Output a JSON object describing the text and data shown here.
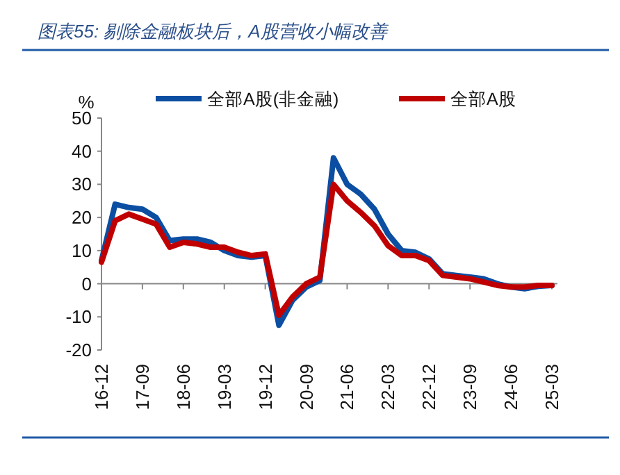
{
  "chart_data": {
    "type": "line",
    "title": "图表55: 剔除金融板块后，A股营收小幅改善",
    "ylabel": "%",
    "categories": [
      "16-12",
      null,
      null,
      "17-09",
      null,
      null,
      "18-06",
      null,
      null,
      "19-03",
      null,
      null,
      "19-12",
      null,
      null,
      "20-09",
      null,
      null,
      "21-06",
      null,
      null,
      "22-03",
      null,
      null,
      "22-12",
      null,
      null,
      "23-09",
      null,
      null,
      "24-06",
      null,
      null,
      "25-03"
    ],
    "series": [
      {
        "name": "全部A股(非金融)",
        "color": "#0b4ea2",
        "values": [
          7,
          24,
          23,
          22.5,
          20,
          13,
          13.5,
          13.5,
          12.5,
          10,
          8.5,
          8,
          8.5,
          -12.5,
          -5,
          -1,
          1,
          38,
          30,
          27,
          22.5,
          15,
          10,
          9.5,
          7.5,
          3,
          2.5,
          2,
          1.5,
          0,
          -1,
          -1.5,
          -0.8,
          -0.5
        ]
      },
      {
        "name": "全部A股",
        "color": "#c00000",
        "values": [
          6.5,
          19,
          21,
          19.5,
          18,
          11,
          12.5,
          12,
          11,
          11,
          9.5,
          8.5,
          9,
          -9.5,
          -4,
          0,
          2,
          30,
          25,
          21.5,
          17.5,
          11.5,
          8.5,
          8.5,
          7,
          2.5,
          2,
          1.5,
          0.5,
          -0.5,
          -1,
          -1,
          -0.5,
          -0.5
        ]
      }
    ],
    "ylim": [
      -20,
      50
    ],
    "yticks": [
      -20,
      -10,
      0,
      10,
      20,
      30,
      40,
      50
    ],
    "legend": "top"
  }
}
